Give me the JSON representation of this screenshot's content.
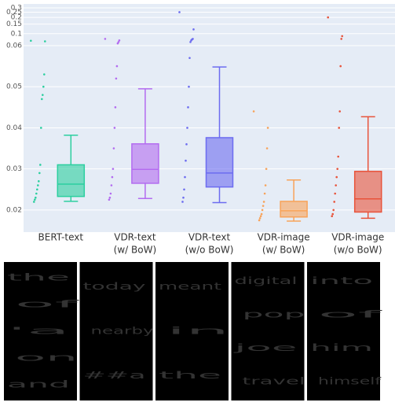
{
  "chart_data": {
    "type": "box",
    "categories": [
      [
        "BERT-text"
      ],
      [
        "VDR-text",
        "(w/ BoW)"
      ],
      [
        "VDR-text",
        "(w/o BoW)"
      ],
      [
        "VDR-image",
        "(w/ BoW)"
      ],
      [
        "VDR-image",
        "(w/o BoW)"
      ]
    ],
    "series": [
      {
        "color": "#2ccf9f",
        "min": 0.0221,
        "q1": 0.0233,
        "median": 0.0263,
        "q3": 0.031,
        "max": 0.0382,
        "points": [
          0.074,
          0.072,
          0.053,
          0.05,
          0.048,
          0.047,
          0.04,
          0.031,
          0.029,
          0.027,
          0.026,
          0.025,
          0.024,
          0.023,
          0.0225,
          0.022
        ]
      },
      {
        "color": "#b36cf0",
        "min": 0.0228,
        "q1": 0.0265,
        "median": 0.0299,
        "q3": 0.0361,
        "max": 0.0495,
        "points": [
          0.08,
          0.075,
          0.07,
          0.066,
          0.055,
          0.052,
          0.045,
          0.04,
          0.035,
          0.03,
          0.028,
          0.026,
          0.024,
          0.023,
          0.0225
        ]
      },
      {
        "color": "#6c6cf0",
        "min": 0.0218,
        "q1": 0.0256,
        "median": 0.029,
        "q3": 0.0376,
        "max": 0.0548,
        "points": [
          0.25,
          0.12,
          0.08,
          0.078,
          0.075,
          0.07,
          0.057,
          0.05,
          0.045,
          0.04,
          0.036,
          0.032,
          0.028,
          0.025,
          0.023,
          0.022
        ]
      },
      {
        "color": "#f8a35a",
        "min": 0.0173,
        "q1": 0.0183,
        "median": 0.0198,
        "q3": 0.0221,
        "max": 0.0273,
        "points": [
          0.044,
          0.04,
          0.035,
          0.03,
          0.026,
          0.024,
          0.022,
          0.021,
          0.02,
          0.019,
          0.0185,
          0.018,
          0.0175
        ]
      },
      {
        "color": "#e8533a",
        "min": 0.018,
        "q1": 0.0195,
        "median": 0.0227,
        "q3": 0.0294,
        "max": 0.0427,
        "points": [
          0.2,
          0.09,
          0.08,
          0.055,
          0.044,
          0.04,
          0.033,
          0.03,
          0.028,
          0.026,
          0.024,
          0.022,
          0.02,
          0.019,
          0.0185
        ]
      }
    ],
    "ylim": [
      0.015,
      0.06
    ],
    "yticks": [
      0.02,
      0.03,
      0.04,
      0.05,
      0.06
    ],
    "ylim_upper": [
      0.06,
      0.3
    ],
    "yticks_upper": [
      0.1,
      0.15,
      0.2,
      0.25,
      0.3
    ],
    "log_upper": true,
    "grid": true
  },
  "word_clouds": [
    [
      "the",
      "of",
      "'a",
      "on",
      "and"
    ],
    [
      "today",
      "nearby",
      "##a"
    ],
    [
      "meant",
      "in",
      "the"
    ],
    [
      "digital",
      "pop",
      "joe",
      "travel"
    ],
    [
      "into",
      "of",
      "him",
      "himself"
    ]
  ]
}
